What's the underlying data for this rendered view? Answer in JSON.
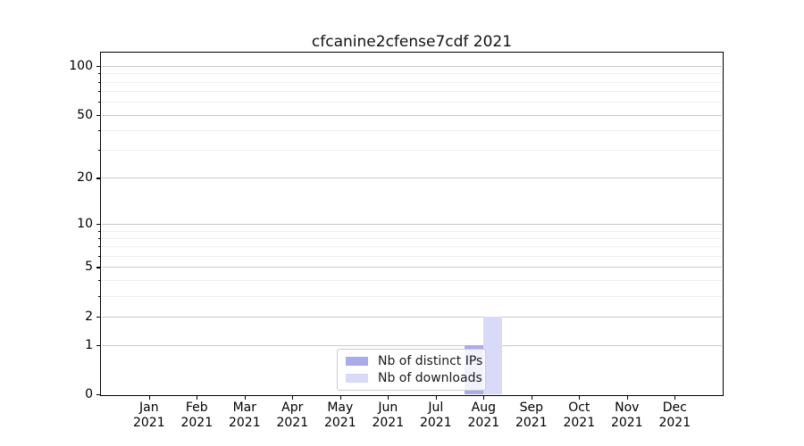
{
  "chart_data": {
    "type": "bar",
    "title": "cfcanine2cfense7cdf 2021",
    "categories": [
      "Jan",
      "Feb",
      "Mar",
      "Apr",
      "May",
      "Jun",
      "Jul",
      "Aug",
      "Sep",
      "Oct",
      "Nov",
      "Dec"
    ],
    "x_tick_year": "2021",
    "series": [
      {
        "name": "Nb of distinct IPs",
        "color": "#aaaaee",
        "values": [
          0,
          0,
          0,
          0,
          0,
          0,
          0,
          1,
          0,
          0,
          0,
          0
        ]
      },
      {
        "name": "Nb of downloads",
        "color": "#d9d9f8",
        "values": [
          0,
          0,
          0,
          0,
          0,
          0,
          0,
          2,
          0,
          0,
          0,
          0
        ]
      }
    ],
    "yscale": "log1p",
    "ylim": [
      0,
      120
    ],
    "yticks": [
      0,
      1,
      2,
      5,
      10,
      20,
      50,
      100
    ],
    "minor_yticks": [
      3,
      4,
      6,
      7,
      8,
      9,
      30,
      40,
      60,
      70,
      80,
      90
    ],
    "grid": "both",
    "legend_position": "lower center",
    "colors": {
      "major_grid": "#c9c9c9",
      "minor_grid": "#efefef",
      "spine": "#000000",
      "text": "#000000",
      "background": "#ffffff"
    }
  }
}
